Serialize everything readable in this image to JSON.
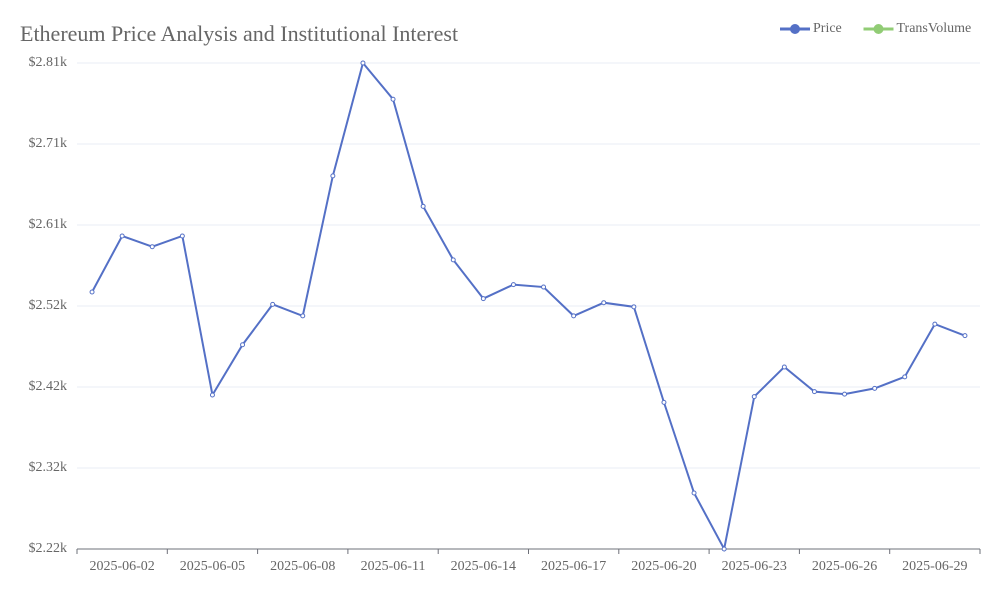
{
  "chart_data": {
    "type": "line",
    "title": "Ethereum Price Analysis and Institutional Interest",
    "categories": [
      null,
      "2025-06-02",
      null,
      null,
      "2025-06-05",
      null,
      null,
      "2025-06-08",
      null,
      null,
      "2025-06-11",
      null,
      null,
      "2025-06-14",
      null,
      null,
      "2025-06-17",
      null,
      null,
      "2025-06-20",
      null,
      null,
      "2025-06-23",
      null,
      null,
      "2025-06-26",
      null,
      null,
      "2025-06-29",
      null
    ],
    "series": [
      {
        "name": "Price",
        "color": "#5470c6",
        "values": [
          2532,
          2600,
          2587,
          2600,
          2407,
          2468,
          2517,
          2503,
          2673,
          2810,
          2766,
          2636,
          2571,
          2524,
          2541,
          2538,
          2503,
          2519,
          2514,
          2398,
          2288,
          2220,
          2405,
          2441,
          2411,
          2408,
          2415,
          2429,
          2493,
          2479
        ]
      },
      {
        "name": "TransVolume",
        "color": "#91cc75",
        "values": [
          null,
          null,
          null,
          null,
          null,
          null,
          null,
          null,
          null,
          null,
          null,
          null,
          null,
          null,
          null,
          null,
          null,
          null,
          null,
          null,
          null,
          null,
          null,
          null,
          null,
          null,
          null,
          null,
          null,
          null
        ]
      }
    ],
    "ylim": [
      2220,
      2810
    ],
    "yticks": [
      {
        "value": 2220,
        "label": "$2.22k"
      },
      {
        "value": 2318.3,
        "label": "$2.32k"
      },
      {
        "value": 2416.7,
        "label": "$2.42k"
      },
      {
        "value": 2515,
        "label": "$2.52k"
      },
      {
        "value": 2613.3,
        "label": "$2.61k"
      },
      {
        "value": 2711.7,
        "label": "$2.71k"
      },
      {
        "value": 2810,
        "label": "$2.81k"
      }
    ],
    "grid": true,
    "legend": "top-right"
  }
}
